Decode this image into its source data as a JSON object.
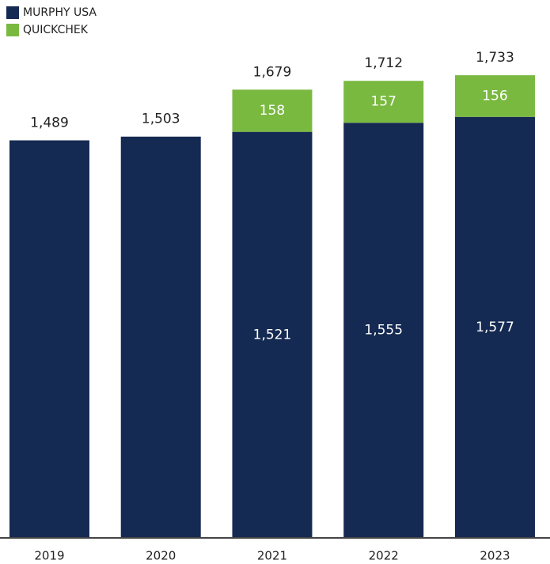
{
  "chart_data": {
    "type": "stacked_bar",
    "categories": [
      "2019",
      "2020",
      "2021",
      "2022",
      "2023"
    ],
    "series": [
      {
        "name": "MURPHY USA",
        "color": "#152a52",
        "values": [
          1489,
          1503,
          1521,
          1555,
          1577
        ],
        "value_labels": [
          null,
          null,
          "1,521",
          "1,555",
          "1,577"
        ]
      },
      {
        "name": "QUICKCHEK",
        "color": "#7ab940",
        "values": [
          null,
          null,
          158,
          157,
          156
        ],
        "value_labels": [
          null,
          null,
          "158",
          "157",
          "156"
        ]
      }
    ],
    "totals": [
      1489,
      1503,
      1679,
      1712,
      1733
    ],
    "total_labels": [
      "1,489",
      "1,503",
      "1,679",
      "1,712",
      "1,733"
    ],
    "ylim": [
      0,
      2000
    ],
    "legend": "top-left"
  }
}
